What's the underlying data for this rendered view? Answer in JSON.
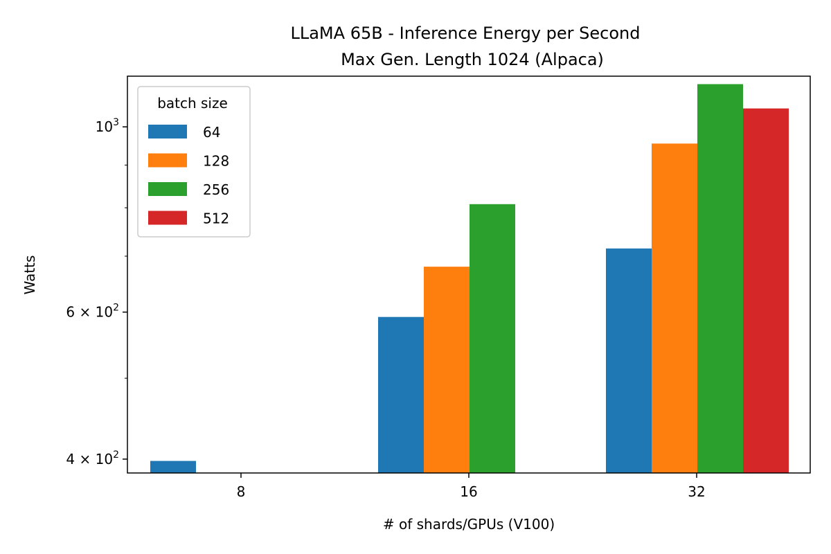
{
  "chart_data": {
    "type": "bar",
    "title": "LLaMA 65B - Inference Energy per Second",
    "subtitle": "Max Gen. Length 1024 (Alpaca)",
    "xlabel": "# of shards/GPUs (V100)",
    "ylabel": "Watts",
    "yscale": "log",
    "ylim": [
      385,
      1150
    ],
    "categories": [
      "8",
      "16",
      "32"
    ],
    "y_major_ticks": [
      {
        "value": 400,
        "label_base": "4 × 10",
        "label_exp": "2"
      },
      {
        "value": 600,
        "label_base": "6 × 10",
        "label_exp": "2"
      },
      {
        "value": 1000,
        "label_base": "10",
        "label_exp": "3"
      }
    ],
    "y_minor_ticks": [
      500,
      700,
      800,
      900
    ],
    "legend": {
      "title": "batch size",
      "placement": "upper left"
    },
    "series": [
      {
        "name": "64",
        "color": "#1f77b4",
        "values": [
          398,
          592,
          715
        ]
      },
      {
        "name": "128",
        "color": "#ff7f0e",
        "values": [
          null,
          680,
          955
        ]
      },
      {
        "name": "256",
        "color": "#2ca02c",
        "values": [
          null,
          808,
          1125
        ]
      },
      {
        "name": "512",
        "color": "#d62728",
        "values": [
          null,
          null,
          1052
        ]
      }
    ],
    "grid": false
  }
}
